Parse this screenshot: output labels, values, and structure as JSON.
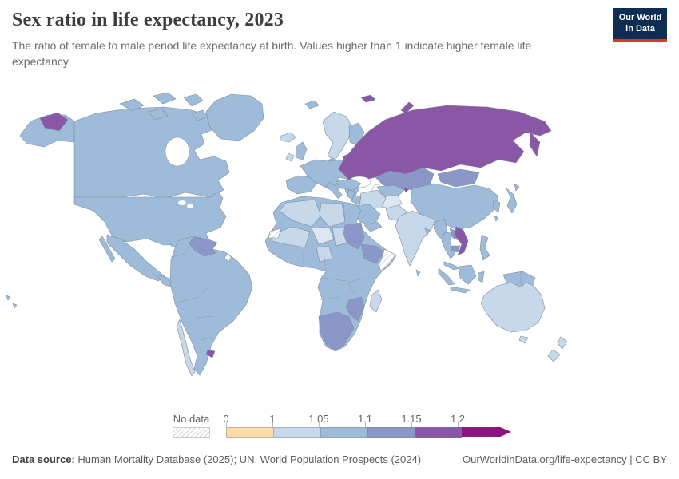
{
  "header": {
    "title": "Sex ratio in life expectancy, 2023",
    "subtitle": "The ratio of female to male period life expectancy at birth. Values higher than 1 indicate higher female life expectancy."
  },
  "logo": {
    "line1": "Our World",
    "line2": "in Data",
    "bg_color": "#0d2d52",
    "accent_color": "#dc352c"
  },
  "legend": {
    "no_data_label": "No data",
    "ticks": [
      "0",
      "1",
      "1.05",
      "1.1",
      "1.15",
      "1.2"
    ],
    "bins": [
      {
        "range": "0–1",
        "color": "#fbdcab"
      },
      {
        "range": "1–1.05",
        "color": "#c6d8e9"
      },
      {
        "range": "1.05–1.1",
        "color": "#9ebcda"
      },
      {
        "range": "1.1–1.15",
        "color": "#8b97c8"
      },
      {
        "range": "1.15–1.2",
        "color": "#8a57a7"
      },
      {
        "range": "1.2+",
        "color": "#8b1480"
      }
    ]
  },
  "map_palette": {
    "light_variant": "#dce7f2",
    "country_stroke": "#7d8d9c",
    "ocean": "#ffffff",
    "no_data_stripe": "#d3d3d3"
  },
  "footer": {
    "source_label": "Data source:",
    "source_text": " Human Mortality Database (2025); UN, World Population Prospects (2024)",
    "link_text": "OurWorldinData.org/life-expectancy | CC BY"
  },
  "chart_data": {
    "type": "choropleth_map",
    "title": "Sex ratio in life expectancy, 2023",
    "metric": "Ratio of female to male period life expectancy at birth (values > 1 = higher female life expectancy)",
    "legend_bins": [
      "0–1",
      "1–1.05",
      "1.05–1.1",
      "1.1–1.15",
      "1.15–1.2",
      "1.2+",
      "No data"
    ],
    "regions": [
      {
        "name": "Russia",
        "bin": "1.15–1.2"
      },
      {
        "name": "Ukraine",
        "bin": "1.15–1.2"
      },
      {
        "name": "Belarus",
        "bin": "1.15–1.2"
      },
      {
        "name": "Baltic states",
        "bin": "1.15–1.2"
      },
      {
        "name": "Vietnam",
        "bin": "1.15–1.2"
      },
      {
        "name": "Uruguay",
        "bin": "1.15–1.2"
      },
      {
        "name": "Kazakhstan",
        "bin": "1.1–1.15"
      },
      {
        "name": "Mongolia",
        "bin": "1.1–1.15"
      },
      {
        "name": "Venezuela",
        "bin": "1.1–1.15"
      },
      {
        "name": "Sudan",
        "bin": "1.1–1.15"
      },
      {
        "name": "Ethiopia",
        "bin": "1.1–1.15"
      },
      {
        "name": "South Africa",
        "bin": "1.1–1.15"
      },
      {
        "name": "Namibia",
        "bin": "1.1–1.15"
      },
      {
        "name": "Botswana",
        "bin": "1.1–1.15"
      },
      {
        "name": "Zimbabwe",
        "bin": "1.1–1.15"
      },
      {
        "name": "Mozambique",
        "bin": "1.1–1.15"
      },
      {
        "name": "Laos",
        "bin": "1.1–1.15"
      },
      {
        "name": "Cambodia",
        "bin": "1.1–1.15"
      },
      {
        "name": "United States",
        "bin": "1.05–1.1"
      },
      {
        "name": "Canada",
        "bin": "1.05–1.1"
      },
      {
        "name": "Greenland",
        "bin": "1.05–1.1"
      },
      {
        "name": "Mexico",
        "bin": "1.05–1.1"
      },
      {
        "name": "Brazil",
        "bin": "1.05–1.1"
      },
      {
        "name": "Argentina",
        "bin": "1.05–1.1"
      },
      {
        "name": "Colombia",
        "bin": "1.05–1.1"
      },
      {
        "name": "Peru",
        "bin": "1.05–1.1"
      },
      {
        "name": "United Kingdom",
        "bin": "1.05–1.1"
      },
      {
        "name": "France",
        "bin": "1.05–1.1"
      },
      {
        "name": "Germany",
        "bin": "1.05–1.1"
      },
      {
        "name": "Poland",
        "bin": "1.05–1.1"
      },
      {
        "name": "Spain",
        "bin": "1.05–1.1"
      },
      {
        "name": "Finland",
        "bin": "1.05–1.1"
      },
      {
        "name": "Turkey",
        "bin": "1.05–1.1"
      },
      {
        "name": "China",
        "bin": "1.05–1.1"
      },
      {
        "name": "Japan",
        "bin": "1.05–1.1"
      },
      {
        "name": "South Korea",
        "bin": "1.05–1.1"
      },
      {
        "name": "Egypt",
        "bin": "1.05–1.1"
      },
      {
        "name": "Morocco",
        "bin": "1.05–1.1"
      },
      {
        "name": "Kenya",
        "bin": "1.05–1.1"
      },
      {
        "name": "DR Congo",
        "bin": "1.05–1.1"
      },
      {
        "name": "Angola",
        "bin": "1.05–1.1"
      },
      {
        "name": "Indonesia",
        "bin": "1.05–1.1"
      },
      {
        "name": "Philippines",
        "bin": "1.05–1.1"
      },
      {
        "name": "Thailand",
        "bin": "1.05–1.1"
      },
      {
        "name": "Myanmar",
        "bin": "1.05–1.1"
      },
      {
        "name": "Saudi Arabia",
        "bin": "1.05–1.1"
      },
      {
        "name": "Papua New Guinea",
        "bin": "1.05–1.1"
      },
      {
        "name": "Australia",
        "bin": "1–1.05"
      },
      {
        "name": "New Zealand",
        "bin": "1–1.05"
      },
      {
        "name": "India",
        "bin": "1–1.05"
      },
      {
        "name": "Norway",
        "bin": "1–1.05"
      },
      {
        "name": "Sweden",
        "bin": "1–1.05"
      },
      {
        "name": "Iceland",
        "bin": "1–1.05"
      },
      {
        "name": "Ireland",
        "bin": "1–1.05"
      },
      {
        "name": "Chile",
        "bin": "1–1.05"
      },
      {
        "name": "Iran",
        "bin": "1–1.05"
      },
      {
        "name": "Pakistan",
        "bin": "1–1.05"
      },
      {
        "name": "Afghanistan",
        "bin": "1–1.05"
      },
      {
        "name": "Algeria",
        "bin": "1–1.05"
      },
      {
        "name": "Libya",
        "bin": "1–1.05"
      },
      {
        "name": "Mali",
        "bin": "1–1.05"
      },
      {
        "name": "Niger",
        "bin": "1–1.05"
      },
      {
        "name": "Nigeria",
        "bin": "1–1.05"
      },
      {
        "name": "Chad",
        "bin": "1–1.05"
      },
      {
        "name": "Madagascar",
        "bin": "1–1.05"
      },
      {
        "name": "Somalia",
        "bin": "No data"
      },
      {
        "name": "Western Sahara",
        "bin": "No data"
      },
      {
        "name": "French Guiana",
        "bin": "No data"
      }
    ]
  }
}
